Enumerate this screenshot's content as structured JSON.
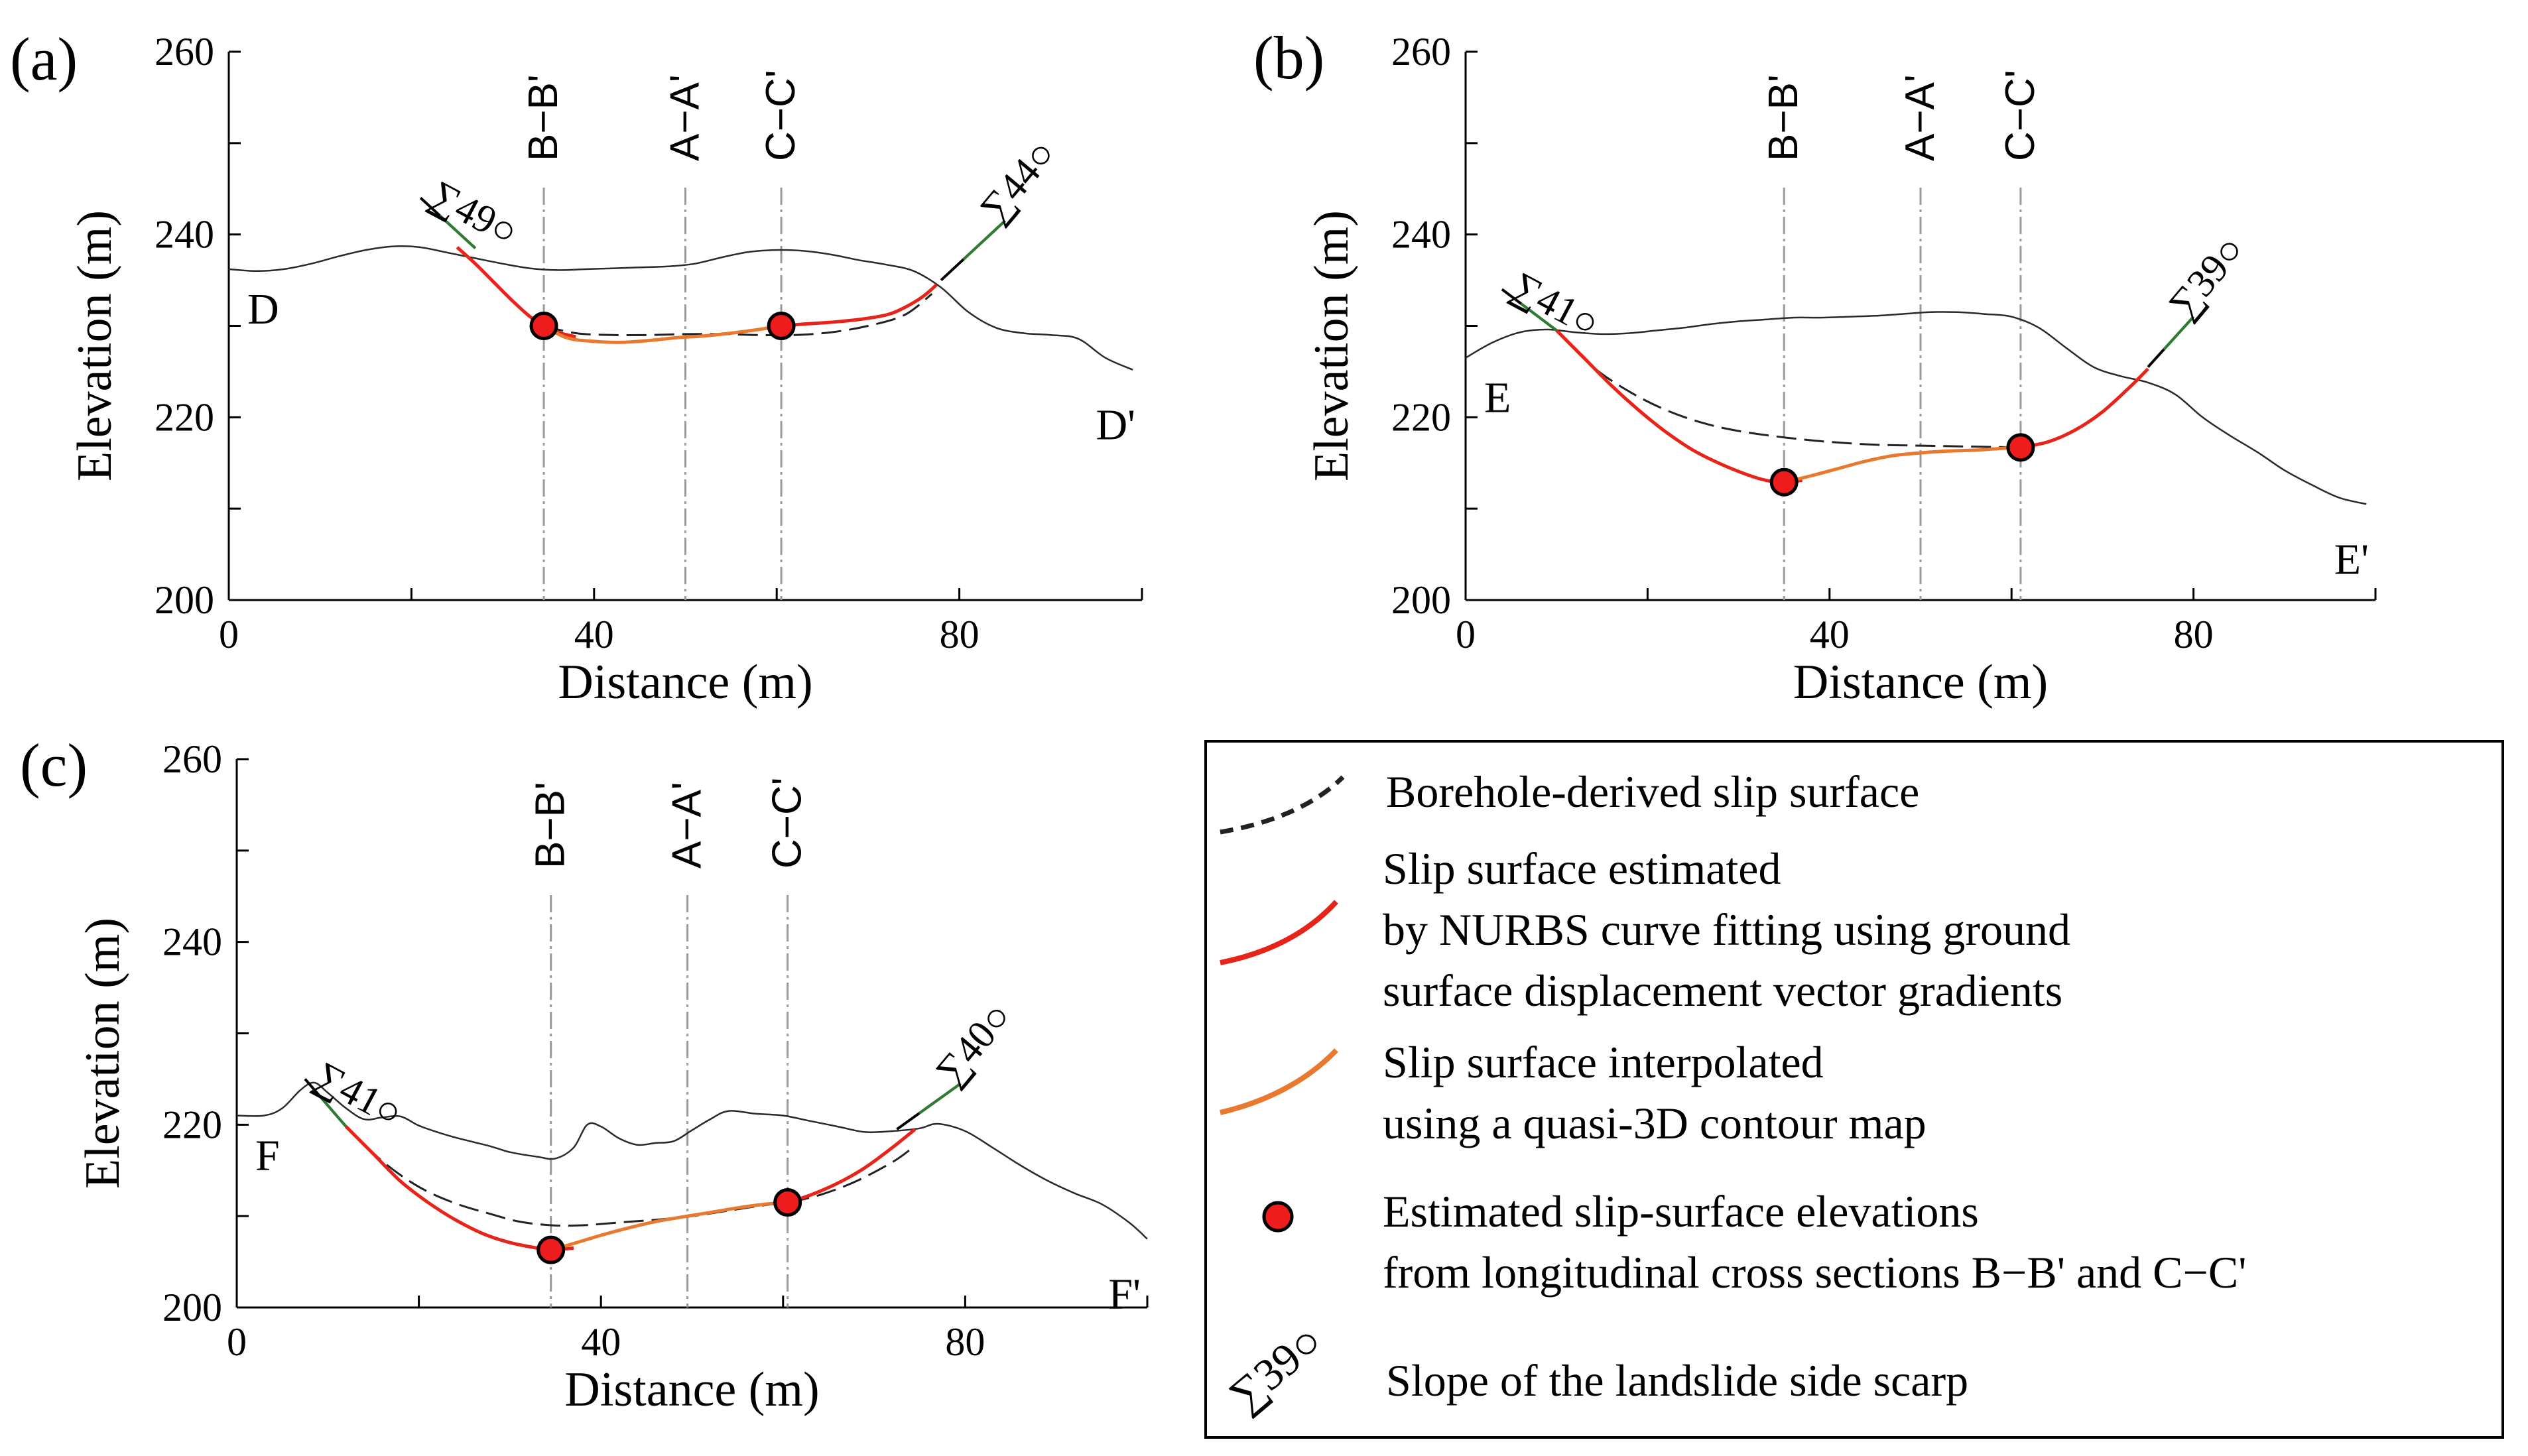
{
  "figure": {
    "legend": {
      "items": [
        {
          "key": "borehole",
          "lines": [
            "Borehole-derived slip surface"
          ]
        },
        {
          "key": "nurbs",
          "lines": [
            "Slip surface estimated",
            "by NURBS curve fitting using ground",
            "surface displacement vector gradients"
          ]
        },
        {
          "key": "quasi3d",
          "lines": [
            "Slip surface interpolated",
            "using a quasi-3D contour map"
          ]
        },
        {
          "key": "points",
          "lines": [
            "Estimated slip-surface elevations",
            "from longitudinal cross sections B−B' and C−C'"
          ]
        },
        {
          "key": "scarp",
          "lines": [
            "Slope of the landslide side scarp"
          ],
          "symbol_label": "∑39○"
        }
      ]
    },
    "colors": {
      "ground": "#2a2a2a",
      "borehole": "#222222",
      "nurbs": "#e8231a",
      "quasi3d": "#e8792e",
      "points_fill": "#ee1c1c",
      "scarp": "#000000",
      "scarp_green": "#2e7d32",
      "section_lines": "#9a9a9a"
    }
  },
  "chart_data": [
    {
      "type": "line",
      "panel": "(a)",
      "xlabel": "Distance (m)",
      "ylabel": "Elevation (m)",
      "xlim": [
        0,
        100
      ],
      "ylim": [
        200,
        260
      ],
      "xticks": [
        0,
        40,
        80
      ],
      "yticks": [
        200,
        220,
        240,
        260
      ],
      "start_label": "D",
      "end_label": "D'",
      "sections": [
        {
          "label": "B−B'",
          "x": 34.5
        },
        {
          "label": "A−A'",
          "x": 50
        },
        {
          "label": "C−C'",
          "x": 60.5
        }
      ],
      "scarp_angles": [
        {
          "label": "∑49○",
          "x0": 21,
          "y0": 244,
          "x1": 27,
          "y1": 238.5,
          "side": "left"
        },
        {
          "label": "∑44○",
          "x0": 78,
          "y0": 235,
          "x1": 85,
          "y1": 241.5,
          "side": "right"
        }
      ],
      "series": [
        {
          "role": "ground",
          "x": [
            0,
            3,
            6,
            9,
            12,
            15,
            18,
            21,
            24,
            27,
            30,
            33,
            36,
            39,
            42,
            45,
            48,
            51,
            54,
            57,
            60,
            63,
            66,
            69,
            72,
            75,
            78,
            81,
            84,
            87,
            90,
            93,
            96,
            99
          ],
          "y": [
            236.2,
            236,
            236.2,
            236.8,
            237.6,
            238.3,
            238.7,
            238.6,
            238,
            237.4,
            236.8,
            236.3,
            236.1,
            236.2,
            236.3,
            236.4,
            236.5,
            236.8,
            237.5,
            238.1,
            238.3,
            238.2,
            237.8,
            237.2,
            236.7,
            236,
            234.2,
            231.5,
            229.8,
            229.2,
            229,
            228.6,
            226.5,
            225.2
          ]
        },
        {
          "role": "borehole",
          "x": [
            34.5,
            38,
            42,
            46,
            50,
            54,
            58,
            62,
            66,
            70,
            74,
            77
          ],
          "y": [
            230,
            229.2,
            229,
            229,
            229.1,
            229.1,
            229,
            229,
            229.3,
            230,
            231.2,
            233.5
          ]
        },
        {
          "role": "nurbs",
          "x": [
            25,
            27,
            29,
            31,
            33,
            34.5,
            36,
            38
          ],
          "y": [
            238.6,
            236.8,
            234.8,
            232.8,
            231,
            230,
            229.3,
            228.8
          ]
        },
        {
          "role": "nurbs",
          "x": [
            60.5,
            63,
            66,
            69,
            72,
            74,
            76,
            77.5
          ],
          "y": [
            230,
            230.2,
            230.4,
            230.7,
            231.2,
            232,
            233.2,
            234.5
          ]
        },
        {
          "role": "quasi3d",
          "x": [
            34.5,
            37,
            40,
            43,
            46,
            49,
            52,
            55,
            58,
            60.5
          ],
          "y": [
            230,
            228.7,
            228.3,
            228.2,
            228.4,
            228.7,
            228.9,
            229.2,
            229.6,
            230
          ]
        },
        {
          "role": "points",
          "x": [
            34.5,
            60.5
          ],
          "y": [
            230,
            230
          ]
        }
      ]
    },
    {
      "type": "line",
      "panel": "(b)",
      "xlabel": "Distance (m)",
      "ylabel": "Elevation (m)",
      "xlim": [
        0,
        100
      ],
      "ylim": [
        200,
        260
      ],
      "xticks": [
        0,
        40,
        80
      ],
      "yticks": [
        200,
        220,
        240,
        260
      ],
      "start_label": "E",
      "end_label": "E'",
      "sections": [
        {
          "label": "B−B'",
          "x": 35
        },
        {
          "label": "A−A'",
          "x": 50
        },
        {
          "label": "C−C'",
          "x": 61
        }
      ],
      "scarp_angles": [
        {
          "label": "∑41○",
          "x0": 4,
          "y0": 234,
          "x1": 10,
          "y1": 229.5,
          "side": "left"
        },
        {
          "label": "∑39○",
          "x0": 75,
          "y0": 225.5,
          "x1": 80,
          "y1": 231,
          "side": "right"
        }
      ],
      "series": [
        {
          "role": "ground",
          "x": [
            0,
            3,
            6,
            9,
            12,
            15,
            18,
            21,
            24,
            27,
            30,
            33,
            36,
            39,
            42,
            45,
            48,
            51,
            54,
            57,
            60,
            63,
            66,
            69,
            72,
            75,
            78,
            81,
            84,
            87,
            90,
            93,
            96,
            99
          ],
          "y": [
            226.5,
            228.2,
            229.3,
            229.6,
            229.3,
            229.1,
            229.2,
            229.5,
            229.8,
            230.2,
            230.5,
            230.7,
            230.9,
            230.9,
            231,
            231.1,
            231.3,
            231.5,
            231.5,
            231.3,
            231,
            229.8,
            227.6,
            225.5,
            224.5,
            223.8,
            222.5,
            220,
            218,
            216.2,
            214.2,
            212.6,
            211.2,
            210.5
          ]
        },
        {
          "role": "borehole",
          "x": [
            10,
            14,
            18,
            22,
            26,
            30,
            35,
            40,
            45,
            50,
            55,
            61
          ],
          "y": [
            229.5,
            225.5,
            222.8,
            220.8,
            219.4,
            218.5,
            217.8,
            217.3,
            217,
            216.9,
            216.8,
            216.7
          ]
        },
        {
          "role": "nurbs",
          "x": [
            10,
            13,
            16,
            19,
            22,
            25,
            28,
            31,
            33,
            35,
            37
          ],
          "y": [
            229.5,
            226.5,
            223.5,
            220.8,
            218.4,
            216.4,
            214.9,
            213.7,
            213.1,
            212.9,
            213.1
          ]
        },
        {
          "role": "nurbs",
          "x": [
            61,
            64,
            67,
            70,
            73,
            75
          ],
          "y": [
            216.7,
            217.3,
            218.6,
            220.6,
            223.3,
            225.3
          ]
        },
        {
          "role": "quasi3d",
          "x": [
            35,
            38,
            41,
            44,
            47,
            50,
            53,
            56,
            59,
            61
          ],
          "y": [
            212.9,
            213.6,
            214.4,
            215.2,
            215.8,
            216.1,
            216.3,
            216.4,
            216.6,
            216.7
          ]
        },
        {
          "role": "points",
          "x": [
            35,
            61
          ],
          "y": [
            212.9,
            216.7
          ]
        }
      ]
    },
    {
      "type": "line",
      "panel": "(c)",
      "xlabel": "Distance (m)",
      "ylabel": "Elevation (m)",
      "xlim": [
        0,
        100
      ],
      "ylim": [
        200,
        260
      ],
      "xticks": [
        0,
        40,
        80
      ],
      "yticks": [
        200,
        220,
        240,
        260
      ],
      "start_label": "F",
      "end_label": "F'",
      "sections": [
        {
          "label": "B−B'",
          "x": 34.5
        },
        {
          "label": "A−A'",
          "x": 49.5
        },
        {
          "label": "C−C'",
          "x": 60.5
        }
      ],
      "scarp_angles": [
        {
          "label": "∑41○",
          "x0": 7.5,
          "y0": 225,
          "x1": 12,
          "y1": 219.8,
          "side": "left"
        },
        {
          "label": "∑40○",
          "x0": 72.5,
          "y0": 219.5,
          "x1": 79.5,
          "y1": 224.5,
          "side": "right"
        }
      ],
      "series": [
        {
          "role": "ground",
          "x": [
            0,
            3,
            5,
            7,
            8.5,
            10,
            12,
            14,
            16,
            18,
            20,
            22,
            24,
            26,
            28,
            30,
            33,
            35,
            37,
            38.5,
            40,
            42,
            44,
            46,
            48,
            50,
            52,
            54,
            57,
            60,
            63,
            66,
            69,
            72,
            75,
            77,
            80,
            83,
            86,
            89,
            92,
            95,
            98,
            100
          ],
          "y": [
            221,
            221,
            221.8,
            223.8,
            224.6,
            223.5,
            221.8,
            220.6,
            220.8,
            220.9,
            219.9,
            219.2,
            218.6,
            218.1,
            217.6,
            217,
            216.5,
            216.3,
            217.5,
            220,
            219.8,
            218.5,
            217.8,
            218,
            218.2,
            219.4,
            220.6,
            221.5,
            221.2,
            221,
            220.4,
            219.8,
            219.2,
            219.3,
            219.6,
            220.1,
            219.3,
            217.5,
            215.6,
            213.9,
            212.5,
            211.3,
            209.3,
            207.5
          ]
        },
        {
          "role": "borehole",
          "x": [
            12,
            16,
            20,
            24,
            28,
            31,
            34.5,
            38,
            42,
            46,
            50,
            54,
            58,
            60.5,
            64,
            68,
            72,
            74
          ],
          "y": [
            219.8,
            216,
            213.2,
            211.4,
            210.2,
            209.4,
            209,
            209,
            209.3,
            209.6,
            210,
            210.6,
            211.2,
            211.5,
            212.3,
            213.8,
            215.9,
            217.3
          ]
        },
        {
          "role": "nurbs",
          "x": [
            12,
            15,
            18,
            21,
            24,
            27,
            30,
            33,
            34.5,
            37
          ],
          "y": [
            219.8,
            216.8,
            213.8,
            211.5,
            209.6,
            208.1,
            207.1,
            206.5,
            206.3,
            206.5
          ]
        },
        {
          "role": "nurbs",
          "x": [
            60.5,
            63,
            66,
            69,
            72,
            74.5
          ],
          "y": [
            211.5,
            212.3,
            213.6,
            215.3,
            217.5,
            219.5
          ]
        },
        {
          "role": "quasi3d",
          "x": [
            34.5,
            37,
            40,
            43,
            46,
            49.5,
            52,
            55,
            58,
            60.5
          ],
          "y": [
            206.3,
            207,
            207.9,
            208.7,
            209.4,
            210,
            210.4,
            210.9,
            211.3,
            211.5
          ]
        },
        {
          "role": "points",
          "x": [
            34.5,
            60.5
          ],
          "y": [
            206.3,
            211.5
          ]
        }
      ]
    }
  ]
}
